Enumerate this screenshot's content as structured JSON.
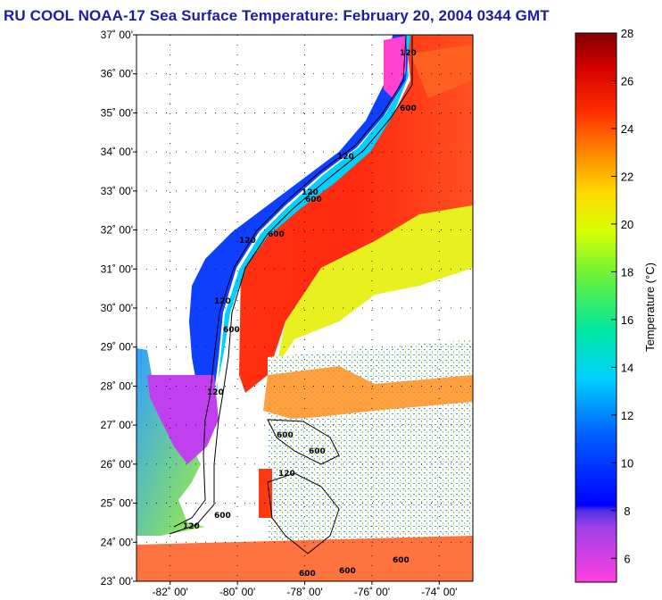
{
  "title": "RU COOL  NOAA-17  Sea Surface Temperature:  February 20, 2004 0344 GMT",
  "map": {
    "lat_labels": [
      "37˚ 00'",
      "36˚ 00'",
      "35˚ 00'",
      "34˚ 00'",
      "33˚ 00'",
      "32˚ 00'",
      "31˚ 00'",
      "30˚ 00'",
      "29˚ 00'",
      "28˚ 00'",
      "27˚ 00'",
      "26˚ 00'",
      "25˚ 00'",
      "24˚ 00'",
      "23˚ 00'"
    ],
    "lat_values": [
      37,
      36,
      35,
      34,
      33,
      32,
      31,
      30,
      29,
      28,
      27,
      26,
      25,
      24,
      23
    ],
    "lon_labels": [
      "-82˚ 00'",
      "-80˚ 00'",
      "-78˚ 00'",
      "-76˚ 00'",
      "-74˚ 00'"
    ],
    "lon_values": [
      -82,
      -80,
      -78,
      -76,
      -74
    ],
    "lat_range": [
      23,
      37
    ],
    "lon_range": [
      -83,
      -73
    ],
    "isobath_labels": [
      "120",
      "600",
      "120",
      "600",
      "120",
      "600",
      "120",
      "120",
      "600",
      "120",
      "600",
      "120",
      "600",
      "600",
      "120",
      "600",
      "600",
      "600"
    ]
  },
  "colorbar": {
    "label": "Temperature (°C)",
    "ticks": [
      "28",
      "26",
      "24",
      "22",
      "20",
      "18",
      "16",
      "14",
      "12",
      "10",
      "8",
      "6"
    ],
    "tick_values": [
      28,
      26,
      24,
      22,
      20,
      18,
      16,
      14,
      12,
      10,
      8,
      6
    ],
    "range": [
      5,
      28
    ]
  },
  "colors": {
    "title": "#1c1ca8",
    "gulf_stream": "#ff2a10",
    "shelf_cold": "#1040ff",
    "land_white": "#ffffff"
  }
}
